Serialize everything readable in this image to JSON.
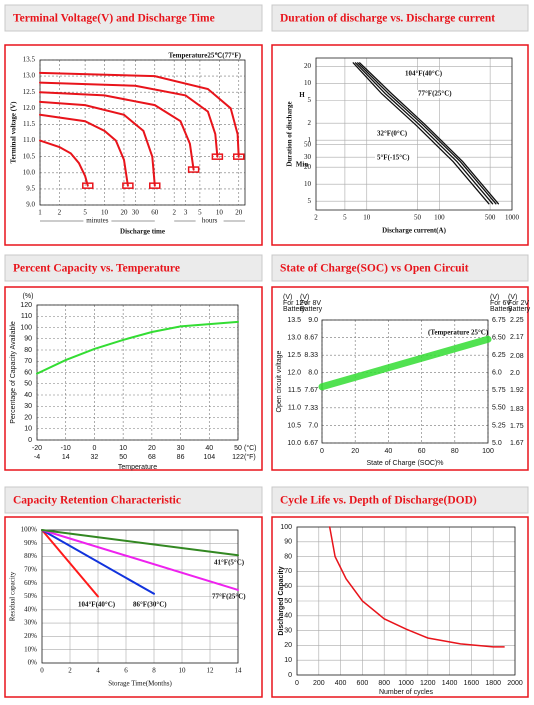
{
  "chart_data": [
    {
      "type": "line",
      "title": "Terminal Voltage(V) and Discharge Time",
      "annotation": "Temperature25℃(77°F)",
      "x_label": "Discharge time",
      "y_label": "Terminal voltage (V)",
      "x_units": [
        "minutes",
        "hours"
      ],
      "log_x": true,
      "xlim": [
        1,
        1500
      ],
      "xticks": [
        1,
        2,
        5,
        10,
        20,
        30,
        60,
        {
          "value": 120,
          "label": "2"
        },
        {
          "value": 180,
          "label": "3"
        },
        {
          "value": 300,
          "label": "5"
        },
        {
          "value": 600,
          "label": "10"
        },
        {
          "value": 1200,
          "label": "20"
        }
      ],
      "ylim": [
        9,
        13.5
      ],
      "yticks": [
        {
          "value": 9,
          "label": "9.0"
        },
        9.5,
        {
          "value": 10,
          "label": "10.0"
        },
        10.5,
        {
          "value": 11,
          "label": "11.0"
        },
        11.5,
        {
          "value": 12,
          "label": "12.0"
        },
        12.5,
        {
          "value": 13,
          "label": "13.0"
        },
        13.5
      ],
      "grid": true,
      "grid_style": "dashed",
      "series": [
        {
          "color": "#e8141b",
          "x": [
            1,
            2,
            3,
            4,
            5,
            5.5
          ],
          "values": [
            11.0,
            10.8,
            10.6,
            10.3,
            9.9,
            9.6
          ]
        },
        {
          "color": "#e8141b",
          "x": [
            1,
            5,
            10,
            15,
            20,
            23
          ],
          "values": [
            11.8,
            11.6,
            11.3,
            11.0,
            10.4,
            9.6
          ]
        },
        {
          "color": "#e8141b",
          "x": [
            1,
            5,
            20,
            40,
            55,
            60
          ],
          "values": [
            12.2,
            12.1,
            11.8,
            11.3,
            10.5,
            9.6
          ]
        },
        {
          "color": "#e8141b",
          "x": [
            1,
            10,
            60,
            150,
            210,
            240
          ],
          "values": [
            12.5,
            12.4,
            12.1,
            11.6,
            10.9,
            10.1
          ]
        },
        {
          "color": "#e8141b",
          "x": [
            1,
            30,
            180,
            400,
            520,
            560
          ],
          "values": [
            12.8,
            12.7,
            12.4,
            11.9,
            11.2,
            10.5
          ]
        },
        {
          "color": "#e8141b",
          "x": [
            1,
            60,
            400,
            900,
            1150,
            1200
          ],
          "values": [
            13.1,
            13.0,
            12.6,
            12.0,
            11.2,
            10.5
          ]
        }
      ]
    },
    {
      "type": "line",
      "title": "Duration of discharge vs. Discharge current",
      "x_label": "Discharge current(A)",
      "y_label": "Duration of discharge",
      "y_units": [
        "H",
        "Min"
      ],
      "log_x": true,
      "log_y": true,
      "xlim": [
        2,
        1000
      ],
      "xticks": [
        2,
        5,
        10,
        50,
        100,
        500,
        1000
      ],
      "ylim": [
        3.5,
        1700
      ],
      "yticks": [
        {
          "value": 1200,
          "label": "20"
        },
        {
          "value": 600,
          "label": "10"
        },
        {
          "value": 300,
          "label": "5"
        },
        {
          "value": 120,
          "label": "2"
        },
        {
          "value": 60,
          "label": "1"
        },
        50,
        30,
        20,
        10,
        5
      ],
      "grid": true,
      "grid_style": "solid",
      "series": [
        {
          "name": "104°F(40°C)",
          "color": "#111111",
          "x": [
            8,
            22,
            65,
            210,
            650
          ],
          "values": [
            1400,
            400,
            110,
            25,
            4.5
          ]
        },
        {
          "name": "77°F(25°C)",
          "color": "#111111",
          "x": [
            7.5,
            20,
            60,
            195,
            600
          ],
          "values": [
            1400,
            400,
            110,
            25,
            4.5
          ]
        },
        {
          "name": "32°F(0°C)",
          "color": "#111111",
          "x": [
            7,
            18,
            54,
            175,
            540
          ],
          "values": [
            1400,
            400,
            110,
            25,
            4.5
          ]
        },
        {
          "name": "5°F(-15°C)",
          "color": "#111111",
          "x": [
            6.5,
            16,
            48,
            155,
            480
          ],
          "values": [
            1400,
            400,
            110,
            25,
            4.5
          ]
        }
      ]
    },
    {
      "type": "line",
      "title": "Percent Capacity vs. Temperature",
      "x_label": "Temperature",
      "y_label": "Percentage of Capacity Available",
      "y_unit": "(%)",
      "x_unit": "(°C)",
      "x2_unit": "(°F)",
      "xlim": [
        -20,
        50
      ],
      "xticks": [
        -20,
        -10,
        0,
        10,
        20,
        30,
        40,
        50
      ],
      "x2ticks": [
        {
          "value": -20,
          "label": "-4"
        },
        {
          "value": -10,
          "label": "14"
        },
        {
          "value": 0,
          "label": "32"
        },
        {
          "value": 10,
          "label": "50"
        },
        {
          "value": 20,
          "label": "68"
        },
        {
          "value": 30,
          "label": "86"
        },
        {
          "value": 40,
          "label": "104"
        },
        {
          "value": 50,
          "label": "122"
        }
      ],
      "ylim": [
        0,
        120
      ],
      "yticks": [
        0,
        10,
        20,
        30,
        40,
        50,
        60,
        70,
        80,
        90,
        100,
        110,
        120
      ],
      "grid": true,
      "grid_style": "dashed",
      "series": [
        {
          "color": "#33dd33",
          "x": [
            -20,
            -10,
            0,
            10,
            20,
            30,
            40,
            50
          ],
          "values": [
            59,
            71,
            81,
            89,
            96,
            101,
            103,
            105
          ]
        }
      ]
    },
    {
      "type": "line",
      "title": "State of Charge(SOC) vs Open Circuit",
      "x_label": "State of Charge (SOC)%",
      "y_label": "Open circuit voltage",
      "annotation": "(Temperature 25°C)",
      "xlim": [
        0,
        100
      ],
      "xticks": [
        0,
        20,
        40,
        60,
        80,
        100
      ],
      "y_header": [
        "(V)",
        "For 12V",
        "Battery"
      ],
      "ylim": [
        10,
        13.5
      ],
      "yticks": [
        {
          "value": 10,
          "label": "10.0"
        },
        10.5,
        {
          "value": 11,
          "label": "11.0"
        },
        11.5,
        {
          "value": 12,
          "label": "12.0"
        },
        12.5,
        {
          "value": 13,
          "label": "13.0"
        },
        13.5
      ],
      "extra_scales": [
        {
          "header": [
            "(V)",
            "For 8V",
            "Battery"
          ],
          "ylim": [
            6.67,
            9
          ],
          "ticks": [
            6.67,
            {
              "value": 7,
              "label": "7.0"
            },
            7.33,
            7.67,
            {
              "value": 8,
              "label": "8.0"
            },
            8.33,
            8.67,
            {
              "value": 9,
              "label": "9.0"
            }
          ]
        },
        {
          "header": [
            "(V)",
            "For 6V",
            "Battery"
          ],
          "ylim": [
            5,
            6.75
          ],
          "ticks": [
            {
              "value": 5,
              "label": "5.0"
            },
            5.25,
            {
              "value": 5.5,
              "label": "5.50"
            },
            5.75,
            {
              "value": 6,
              "label": "6.0"
            },
            6.25,
            {
              "value": 6.5,
              "label": "6.50"
            },
            6.75
          ]
        },
        {
          "header": [
            "(V)",
            "For 2V",
            "Battery"
          ],
          "ylim": [
            1.67,
            2.25
          ],
          "ticks": [
            1.67,
            1.75,
            1.83,
            1.92,
            {
              "value": 2,
              "label": "2.0"
            },
            2.08,
            2.17,
            2.25
          ]
        }
      ],
      "grid": true,
      "grid_style": "dashed",
      "series": [
        {
          "color": "#33dd33",
          "x": [
            0,
            100
          ],
          "values": [
            11.6,
            12.95
          ]
        }
      ]
    },
    {
      "type": "line",
      "title": "Capacity Retention Characteristic",
      "x_label": "Storage Time(Months)",
      "y_label": "Residual capacity",
      "xlim": [
        0,
        14
      ],
      "xticks": [
        0,
        2,
        4,
        6,
        8,
        10,
        12,
        14
      ],
      "ylim": [
        0,
        100
      ],
      "yticks": [
        {
          "value": 0,
          "label": "0%"
        },
        {
          "value": 10,
          "label": "10%"
        },
        {
          "value": 20,
          "label": "20%"
        },
        {
          "value": 30,
          "label": "30%"
        },
        {
          "value": 40,
          "label": "40%"
        },
        {
          "value": 50,
          "label": "50%"
        },
        {
          "value": 60,
          "label": "60%"
        },
        {
          "value": 70,
          "label": "70%"
        },
        {
          "value": 80,
          "label": "80%"
        },
        {
          "value": 90,
          "label": "90%"
        },
        {
          "value": 100,
          "label": "100%"
        }
      ],
      "grid": true,
      "grid_style": "solid",
      "series": [
        {
          "name": "104°F(40°C)",
          "color": "#ff1a1a",
          "x": [
            0,
            4
          ],
          "values": [
            100,
            50
          ]
        },
        {
          "name": "86°F(30°C)",
          "color": "#1133dd",
          "x": [
            0,
            8
          ],
          "values": [
            100,
            52
          ]
        },
        {
          "name": "77°F(25°C)",
          "color": "#ee22ee",
          "x": [
            0,
            14
          ],
          "values": [
            100,
            55
          ]
        },
        {
          "name": "41°F(5°C)",
          "color": "#338822",
          "x": [
            0,
            14
          ],
          "values": [
            100,
            81
          ]
        }
      ]
    },
    {
      "type": "line",
      "title": "Cycle Life vs. Depth of Discharge(DOD)",
      "x_label": "Number of cycles",
      "y_label": "Discharged Capacity",
      "xlim": [
        0,
        2000
      ],
      "xticks": [
        0,
        200,
        400,
        600,
        800,
        1000,
        1200,
        1400,
        1600,
        1800,
        2000
      ],
      "ylim": [
        0,
        100
      ],
      "yticks": [
        0,
        10,
        20,
        30,
        40,
        50,
        60,
        70,
        80,
        90,
        100
      ],
      "grid": true,
      "grid_style": "solid",
      "series": [
        {
          "color": "#e8141b",
          "x": [
            300,
            350,
            450,
            600,
            800,
            1000,
            1200,
            1500,
            1800,
            1900
          ],
          "values": [
            100,
            80,
            65,
            50,
            38,
            31,
            25,
            21,
            19,
            19
          ]
        }
      ]
    }
  ]
}
